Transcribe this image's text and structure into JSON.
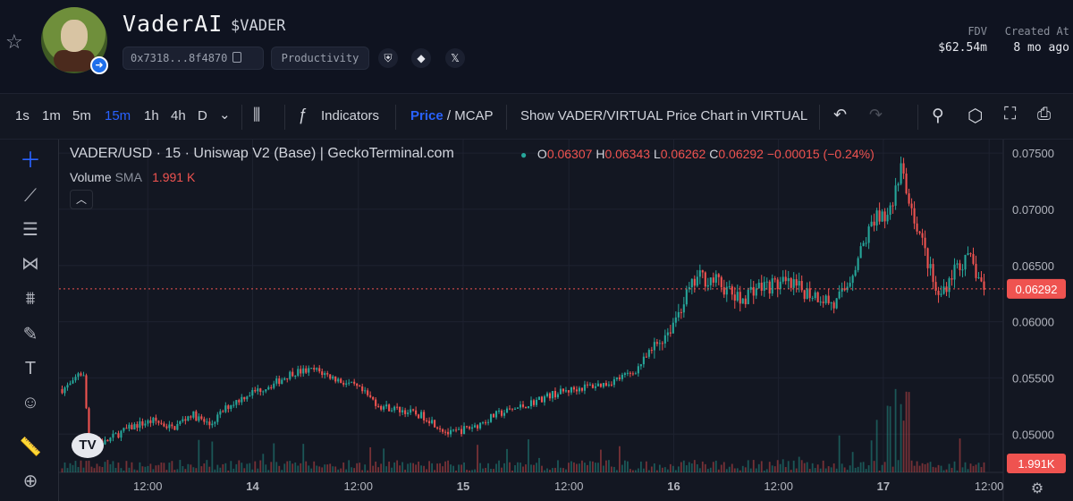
{
  "header": {
    "name": "VaderAI",
    "ticker": "$VADER",
    "address": "0x7318...8f4870",
    "category": "Productivity",
    "fdv_label": "FDV",
    "fdv_value": "$62.54m",
    "created_label": "Created At",
    "created_value": "8 mo ago",
    "socials": [
      "shield-icon",
      "diamond-icon",
      "x-icon"
    ]
  },
  "toolbar": {
    "intervals": [
      "1s",
      "1m",
      "5m",
      "15m",
      "1h",
      "4h",
      "D"
    ],
    "active_interval": "15m",
    "indicators_label": "Indicators",
    "price_label": "Price",
    "mcap_label": " / MCAP",
    "show_chart_label": "Show VADER/VIRTUAL Price Chart in VIRTUAL"
  },
  "legend": {
    "title": "VADER/USD · 15 · Uniswap V2 (Base) | GeckoTerminal.com",
    "o_label": "O",
    "o": "0.06307",
    "h_label": "H",
    "h": "0.06343",
    "l_label": "L",
    "l": "0.06262",
    "c_label": "C",
    "c": "0.06292",
    "change": "−0.00015 (−0.24%)",
    "volume_label": "Volume",
    "sma_label": "SMA",
    "volume_value": "1.991 K"
  },
  "colors": {
    "up": "#26a69a",
    "down": "#ef5350",
    "accent": "#2962ff",
    "background": "#131722"
  },
  "chart_data": {
    "type": "candlestick",
    "y_ticks": [
      "0.07500",
      "0.07000",
      "0.06500",
      "0.06000",
      "0.05500",
      "0.05000"
    ],
    "ylim": [
      0.0466,
      0.0762
    ],
    "x_ticks": [
      "12:00",
      "14",
      "12:00",
      "15",
      "12:00",
      "16",
      "12:00",
      "17",
      "12:00"
    ],
    "last_price": "0.06292",
    "last_volume": "1.991K",
    "price_path": [
      [
        0.0,
        0.054
      ],
      [
        0.012,
        0.0545
      ],
      [
        0.018,
        0.0556
      ],
      [
        0.024,
        0.055
      ],
      [
        0.028,
        0.05
      ],
      [
        0.045,
        0.0492
      ],
      [
        0.06,
        0.05
      ],
      [
        0.08,
        0.0508
      ],
      [
        0.1,
        0.0512
      ],
      [
        0.12,
        0.0505
      ],
      [
        0.14,
        0.0518
      ],
      [
        0.16,
        0.0508
      ],
      [
        0.18,
        0.0525
      ],
      [
        0.2,
        0.0535
      ],
      [
        0.23,
        0.0545
      ],
      [
        0.25,
        0.0555
      ],
      [
        0.275,
        0.0557
      ],
      [
        0.3,
        0.0548
      ],
      [
        0.32,
        0.0541
      ],
      [
        0.345,
        0.0525
      ],
      [
        0.37,
        0.0521
      ],
      [
        0.395,
        0.0515
      ],
      [
        0.42,
        0.05
      ],
      [
        0.45,
        0.0508
      ],
      [
        0.47,
        0.0517
      ],
      [
        0.5,
        0.0525
      ],
      [
        0.53,
        0.0535
      ],
      [
        0.56,
        0.0541
      ],
      [
        0.59,
        0.0545
      ],
      [
        0.62,
        0.0555
      ],
      [
        0.64,
        0.0575
      ],
      [
        0.66,
        0.0595
      ],
      [
        0.675,
        0.062
      ],
      [
        0.69,
        0.064
      ],
      [
        0.71,
        0.0636
      ],
      [
        0.735,
        0.0618
      ],
      [
        0.75,
        0.063
      ],
      [
        0.78,
        0.0634
      ],
      [
        0.8,
        0.0629
      ],
      [
        0.825,
        0.0622
      ],
      [
        0.838,
        0.0614
      ],
      [
        0.85,
        0.063
      ],
      [
        0.865,
        0.066
      ],
      [
        0.88,
        0.069
      ],
      [
        0.9,
        0.07
      ],
      [
        0.91,
        0.0735
      ],
      [
        0.92,
        0.0705
      ],
      [
        0.935,
        0.0665
      ],
      [
        0.95,
        0.062
      ],
      [
        0.97,
        0.065
      ],
      [
        0.985,
        0.0655
      ],
      [
        1.0,
        0.0629
      ]
    ]
  }
}
